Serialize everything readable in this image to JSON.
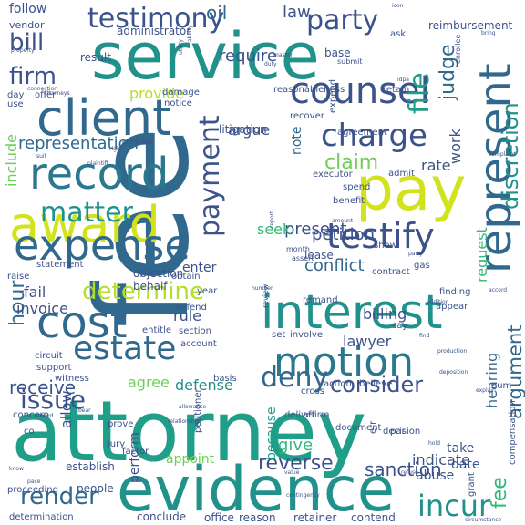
{
  "word_cloud": {
    "background": "#ffffff",
    "palette": {
      "dark_purple": "#440154",
      "indigo": "#3b528b",
      "slate_blue": "#31688e",
      "teal": "#21918c",
      "green_teal": "#1f9e89",
      "green": "#35b779",
      "light_green": "#6ece58",
      "lime": "#b5de2b",
      "yellow": "#fde725"
    },
    "words": [
      {
        "text": "attorney",
        "color": "#1f9e89"
      },
      {
        "text": "fee",
        "color": "#31688e"
      },
      {
        "text": "service",
        "color": "#21918c"
      },
      {
        "text": "evidence",
        "color": "#21918c"
      },
      {
        "text": "pay",
        "color": "#d2e21b"
      },
      {
        "text": "award",
        "color": "#d2e21b"
      },
      {
        "text": "interest",
        "color": "#21918c"
      },
      {
        "text": "expense",
        "color": "#31688e"
      },
      {
        "text": "record",
        "color": "#2a788e"
      },
      {
        "text": "client",
        "color": "#31688e"
      },
      {
        "text": "cost",
        "color": "#31688e"
      },
      {
        "text": "motion",
        "color": "#2a788e"
      },
      {
        "text": "counsel",
        "color": "#3b528b"
      },
      {
        "text": "represent",
        "color": "#31688e"
      },
      {
        "text": "testify",
        "color": "#3b528b"
      },
      {
        "text": "payment",
        "color": "#3b528b"
      },
      {
        "text": "estate",
        "color": "#31688e"
      },
      {
        "text": "charge",
        "color": "#3b528b"
      },
      {
        "text": "testimony",
        "color": "#3b528b"
      },
      {
        "text": "party",
        "color": "#3b528b"
      },
      {
        "text": "file",
        "color": "#1f9e89"
      },
      {
        "text": "discretion",
        "color": "#21918c"
      },
      {
        "text": "matter",
        "color": "#21918c"
      },
      {
        "text": "determine",
        "color": "#b5de2b"
      },
      {
        "text": "issue",
        "color": "#3b528b"
      },
      {
        "text": "render",
        "color": "#31688e"
      },
      {
        "text": "incur",
        "color": "#21918c"
      },
      {
        "text": "deny",
        "color": "#31688e"
      },
      {
        "text": "consider",
        "color": "#3b528b"
      },
      {
        "text": "argument",
        "color": "#31688e"
      },
      {
        "text": "bill",
        "color": "#3b528b"
      },
      {
        "text": "firm",
        "color": "#3b528b"
      },
      {
        "text": "claim",
        "color": "#6ece58"
      },
      {
        "text": "judge",
        "color": "#31688e"
      },
      {
        "text": "hour",
        "color": "#31688e"
      },
      {
        "text": "representation",
        "color": "#31688e"
      },
      {
        "text": "petition",
        "color": "#3b528b"
      },
      {
        "text": "receive",
        "color": "#3b528b"
      },
      {
        "text": "reverse",
        "color": "#3b528b"
      },
      {
        "text": "sanction",
        "color": "#3b528b"
      },
      {
        "text": "request",
        "color": "#35b779"
      },
      {
        "text": "conflict",
        "color": "#31688e"
      },
      {
        "text": "present",
        "color": "#3b528b"
      },
      {
        "text": "hearing",
        "color": "#31688e"
      },
      {
        "text": "billing",
        "color": "#3b528b"
      },
      {
        "text": "lawyer",
        "color": "#3b528b"
      },
      {
        "text": "include",
        "color": "#6ece58"
      },
      {
        "text": "oil",
        "color": "#31688e"
      },
      {
        "text": "law",
        "color": "#3b528b"
      },
      {
        "text": "require",
        "color": "#3b528b"
      },
      {
        "text": "provide",
        "color": "#b5de2b"
      },
      {
        "text": "work",
        "color": "#3b528b"
      },
      {
        "text": "rate",
        "color": "#3b528b"
      },
      {
        "text": "seek",
        "color": "#35b779"
      },
      {
        "text": "give",
        "color": "#35b779"
      },
      {
        "text": "agree",
        "color": "#6ece58"
      },
      {
        "text": "defense",
        "color": "#21918c"
      },
      {
        "text": "allow",
        "color": "#3b528b"
      },
      {
        "text": "perform",
        "color": "#3b528b"
      },
      {
        "text": "fail",
        "color": "#3b528b"
      },
      {
        "text": "invoice",
        "color": "#3b528b"
      },
      {
        "text": "rule",
        "color": "#3b528b"
      },
      {
        "text": "because",
        "color": "#1f9e89"
      },
      {
        "text": "indicate",
        "color": "#3b528b"
      },
      {
        "text": "argue",
        "color": "#3b528b"
      },
      {
        "text": "note",
        "color": "#31688e"
      },
      {
        "text": "enter",
        "color": "#3b528b"
      },
      {
        "text": "contend",
        "color": "#3b528b"
      },
      {
        "text": "conclude",
        "color": "#3b528b"
      },
      {
        "text": "office",
        "color": "#3b528b"
      },
      {
        "text": "retainer",
        "color": "#3b528b"
      },
      {
        "text": "reason",
        "color": "#3b528b"
      },
      {
        "text": "appoint",
        "color": "#6ece58"
      },
      {
        "text": "establish",
        "color": "#3b528b"
      },
      {
        "text": "people",
        "color": "#3b528b"
      },
      {
        "text": "proceeding",
        "color": "#3b528b"
      },
      {
        "text": "determination",
        "color": "#3b528b"
      },
      {
        "text": "take",
        "color": "#3b528b"
      },
      {
        "text": "date",
        "color": "#3b528b"
      },
      {
        "text": "abuse",
        "color": "#3b528b"
      },
      {
        "text": "fee",
        "color": "#35b779"
      },
      {
        "text": "follow",
        "color": "#3b528b"
      },
      {
        "text": "vendor",
        "color": "#3b528b"
      },
      {
        "text": "administrator",
        "color": "#3b528b"
      },
      {
        "text": "base",
        "color": "#3b528b"
      },
      {
        "text": "result",
        "color": "#3b528b"
      },
      {
        "text": "damage",
        "color": "#3b528b"
      },
      {
        "text": "notice",
        "color": "#3b528b"
      },
      {
        "text": "litigation",
        "color": "#3b528b"
      },
      {
        "text": "reasonableness",
        "color": "#3b528b"
      },
      {
        "text": "retain",
        "color": "#3b528b"
      },
      {
        "text": "reimbursement",
        "color": "#3b528b"
      },
      {
        "text": "ask",
        "color": "#3b528b"
      },
      {
        "text": "expend",
        "color": "#3b528b"
      },
      {
        "text": "recover",
        "color": "#3b528b"
      },
      {
        "text": "agreement",
        "color": "#3b528b"
      },
      {
        "text": "executor",
        "color": "#3b528b"
      },
      {
        "text": "admit",
        "color": "#3b528b"
      },
      {
        "text": "spend",
        "color": "#3b528b"
      },
      {
        "text": "benefit",
        "color": "#3b528b"
      },
      {
        "text": "lease",
        "color": "#3b528b"
      },
      {
        "text": "objection",
        "color": "#3b528b"
      },
      {
        "text": "behalf",
        "color": "#3b528b"
      },
      {
        "text": "statement",
        "color": "#3b528b"
      },
      {
        "text": "raise",
        "color": "#3b528b"
      },
      {
        "text": "offer",
        "color": "#3b528b"
      },
      {
        "text": "day",
        "color": "#3b528b"
      },
      {
        "text": "use",
        "color": "#3b528b"
      },
      {
        "text": "entitle",
        "color": "#3b528b"
      },
      {
        "text": "section",
        "color": "#3b528b"
      },
      {
        "text": "account",
        "color": "#3b528b"
      },
      {
        "text": "circuit",
        "color": "#3b528b"
      },
      {
        "text": "support",
        "color": "#3b528b"
      },
      {
        "text": "witness",
        "color": "#3b528b"
      },
      {
        "text": "basis",
        "color": "#3b528b"
      },
      {
        "text": "finding",
        "color": "#3b528b"
      },
      {
        "text": "appear",
        "color": "#3b528b"
      },
      {
        "text": "show",
        "color": "#3b528b"
      },
      {
        "text": "contract",
        "color": "#3b528b"
      },
      {
        "text": "gas",
        "color": "#3b528b"
      },
      {
        "text": "obtain",
        "color": "#3b528b"
      },
      {
        "text": "year",
        "color": "#3b528b"
      },
      {
        "text": "defend",
        "color": "#3b528b"
      },
      {
        "text": "remand",
        "color": "#3b528b"
      },
      {
        "text": "set",
        "color": "#3b528b"
      },
      {
        "text": "involve",
        "color": "#3b528b"
      },
      {
        "text": "say",
        "color": "#3b528b"
      },
      {
        "text": "cross",
        "color": "#3b528b"
      },
      {
        "text": "action",
        "color": "#3b528b"
      },
      {
        "text": "believe",
        "color": "#3b528b"
      },
      {
        "text": "affirm",
        "color": "#3b528b"
      },
      {
        "text": "deliver",
        "color": "#3b528b"
      },
      {
        "text": "document",
        "color": "#3b528b"
      },
      {
        "text": "decision",
        "color": "#3b528b"
      },
      {
        "text": "jury",
        "color": "#3b528b"
      },
      {
        "text": "prove",
        "color": "#3b528b"
      },
      {
        "text": "factor",
        "color": "#3b528b"
      },
      {
        "text": "concern",
        "color": "#3b528b"
      },
      {
        "text": "petitioner",
        "color": "#3b528b"
      },
      {
        "text": "compensation",
        "color": "#3b528b"
      },
      {
        "text": "month",
        "color": "#3b528b"
      },
      {
        "text": "assert",
        "color": "#3b528b"
      },
      {
        "text": "review",
        "color": "#3b528b"
      },
      {
        "text": "co",
        "color": "#3b528b"
      },
      {
        "text": "sum",
        "color": "#3b528b"
      },
      {
        "text": "par",
        "color": "#3b528b"
      },
      {
        "text": "err",
        "color": "#3b528b"
      },
      {
        "text": "continue",
        "color": "#3b528b"
      },
      {
        "text": "enrollee",
        "color": "#3b528b"
      },
      {
        "text": "submit",
        "color": "#3b528b"
      },
      {
        "text": "grant",
        "color": "#3b528b"
      },
      {
        "text": "property",
        "color": "#3b528b"
      },
      {
        "text": "connection",
        "color": "#3b528b"
      },
      {
        "text": "attorneys",
        "color": "#3b528b"
      },
      {
        "text": "explain",
        "color": "#3b528b"
      },
      {
        "text": "amount",
        "color": "#3b528b"
      },
      {
        "text": "complaint",
        "color": "#3b528b"
      },
      {
        "text": "production",
        "color": "#3b528b"
      },
      {
        "text": "report",
        "color": "#3b528b"
      },
      {
        "text": "circumstance",
        "color": "#3b528b"
      },
      {
        "text": "relationship",
        "color": "#3b528b"
      },
      {
        "text": "allowance",
        "color": "#3b528b"
      },
      {
        "text": "bring",
        "color": "#3b528b"
      },
      {
        "text": "icon",
        "color": "#3b528b"
      },
      {
        "text": "addition",
        "color": "#3b528b"
      },
      {
        "text": "duty",
        "color": "#3b528b"
      },
      {
        "text": "master",
        "color": "#3b528b"
      },
      {
        "text": "know",
        "color": "#3b528b"
      },
      {
        "text": "refuse",
        "color": "#3b528b"
      },
      {
        "text": "pace",
        "color": "#3b528b"
      },
      {
        "text": "bear",
        "color": "#3b528b"
      },
      {
        "text": "idpa",
        "color": "#3b528b"
      },
      {
        "text": "number",
        "color": "#3b528b"
      },
      {
        "text": "deposition",
        "color": "#3b528b"
      },
      {
        "text": "utility",
        "color": "#3b528b"
      },
      {
        "text": "contingency",
        "color": "#3b528b"
      },
      {
        "text": "value",
        "color": "#3b528b"
      },
      {
        "text": "ability",
        "color": "#3b528b"
      },
      {
        "text": "right",
        "color": "#3b528b"
      },
      {
        "text": "find",
        "color": "#3b528b"
      },
      {
        "text": "accord",
        "color": "#3b528b"
      },
      {
        "text": "award",
        "color": "#3b528b"
      },
      {
        "text": "party",
        "color": "#3b528b"
      },
      {
        "text": "suit",
        "color": "#3b528b"
      },
      {
        "text": "hold",
        "color": "#3b528b"
      },
      {
        "text": "plaintiff",
        "color": "#3b528b"
      }
    ]
  }
}
